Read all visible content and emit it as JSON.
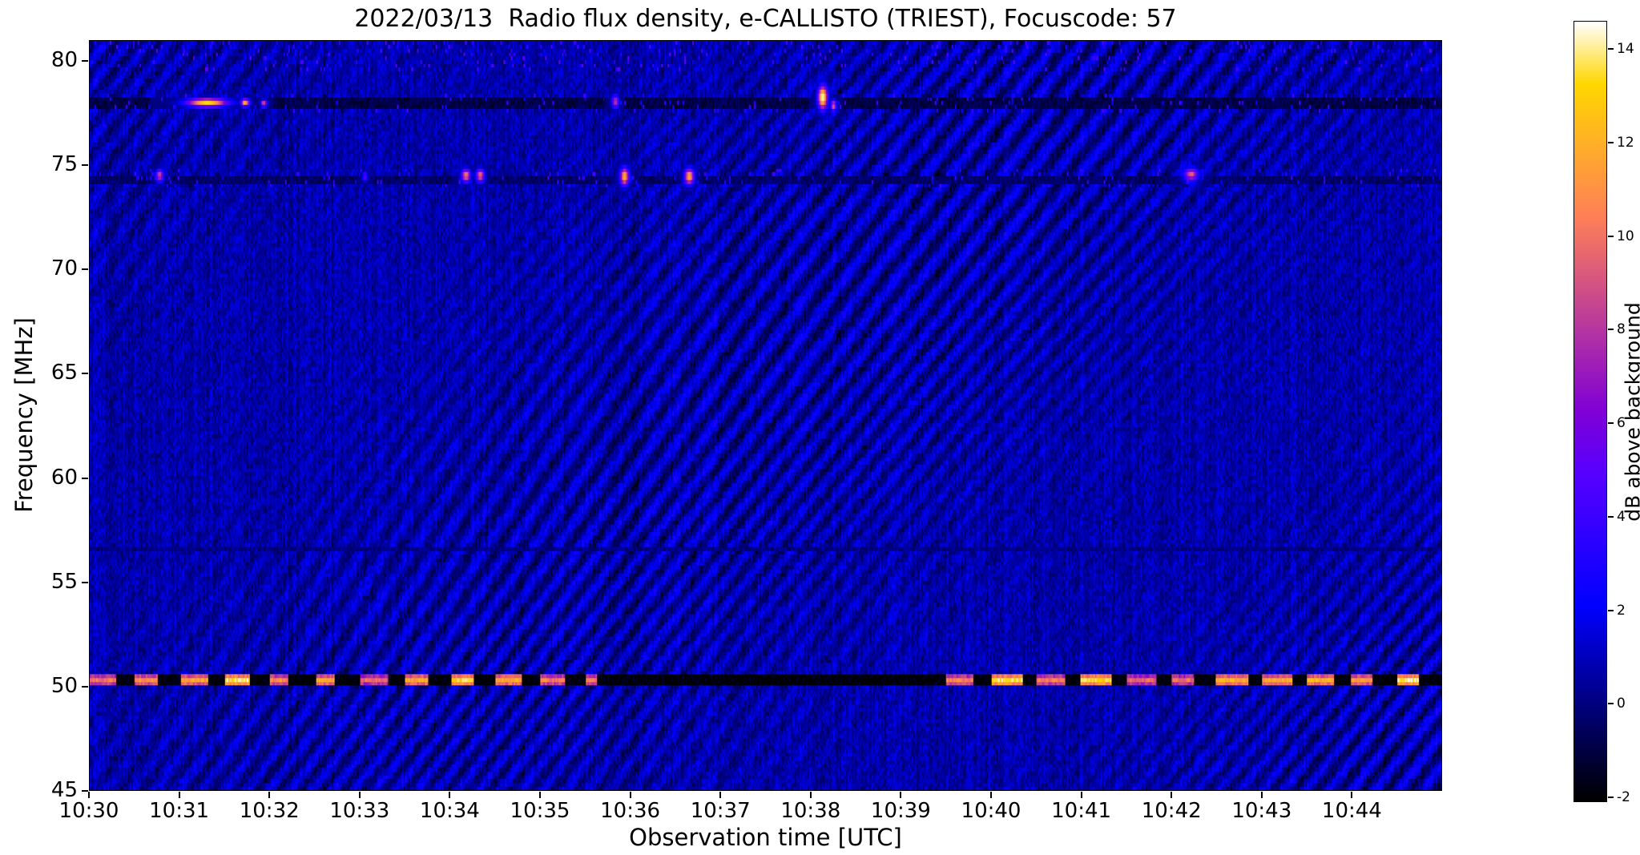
{
  "chart_data": {
    "type": "heatmap",
    "title": "2022/03/13  Radio flux density, e-CALLISTO (TRIEST), Focuscode: 57",
    "xlabel": "Observation time [UTC]",
    "ylabel": "Frequency [MHz]",
    "x_ticks": [
      "10:30",
      "10:31",
      "10:32",
      "10:33",
      "10:34",
      "10:35",
      "10:36",
      "10:37",
      "10:38",
      "10:39",
      "10:40",
      "10:41",
      "10:42",
      "10:43",
      "10:44"
    ],
    "x_range_minutes": [
      0,
      15
    ],
    "start_time_utc": "10:30",
    "y_ticks": [
      80,
      75,
      70,
      65,
      60,
      55,
      50,
      45
    ],
    "y_range_mhz": [
      45,
      81
    ],
    "grid": false,
    "colorbar": {
      "label": "dB above background",
      "ticks": [
        14,
        12,
        10,
        8,
        6,
        4,
        2,
        0,
        -2
      ],
      "vmin": -2.1,
      "vmax": 14.6,
      "colormap": "gnuplot2"
    },
    "background": {
      "base_db": 0.7,
      "ripple_amp_db": 1.15,
      "noise_db": 1.7,
      "col_noise_db": 0.9,
      "channels": 200,
      "time_samples": 880
    },
    "rfi_lanes": [
      {
        "freq_mhz": 78.05,
        "half_width_mhz": 0.26,
        "level_db": -0.9
      },
      {
        "freq_mhz": 74.4,
        "half_width_mhz": 0.2,
        "level_db": -0.4
      },
      {
        "freq_mhz": 56.6,
        "half_width_mhz": 0.12,
        "level_db": 0.0
      },
      {
        "freq_mhz": 50.3,
        "half_width_mhz": 0.32,
        "level_db": -2.0
      }
    ],
    "beacon": {
      "freq_mhz": 50.3,
      "half_width_mhz": 0.3,
      "period_min": 0.5,
      "duty": 0.55,
      "active_windows": [
        [
          0,
          5.63
        ],
        [
          9.35,
          15
        ]
      ],
      "intensity_db": 11,
      "intensity_var_db": 4.5
    },
    "bursts": [
      {
        "t_min": 1.3,
        "freq_mhz": 78.05,
        "dur_min": 0.22,
        "f_width_mhz": 0.2,
        "intensity_db": 13.5
      },
      {
        "t_min": 1.72,
        "freq_mhz": 78.05,
        "dur_min": 0.05,
        "f_width_mhz": 0.18,
        "intensity_db": 12
      },
      {
        "t_min": 1.93,
        "freq_mhz": 78.0,
        "dur_min": 0.035,
        "f_width_mhz": 0.16,
        "intensity_db": 9
      },
      {
        "t_min": 5.83,
        "freq_mhz": 78.1,
        "dur_min": 0.035,
        "f_width_mhz": 0.3,
        "intensity_db": 8.5
      },
      {
        "t_min": 8.13,
        "freq_mhz": 78.3,
        "dur_min": 0.05,
        "f_width_mhz": 0.55,
        "intensity_db": 14.8
      },
      {
        "t_min": 8.25,
        "freq_mhz": 77.9,
        "dur_min": 0.035,
        "f_width_mhz": 0.25,
        "intensity_db": 10
      },
      {
        "t_min": 0.77,
        "freq_mhz": 74.55,
        "dur_min": 0.04,
        "f_width_mhz": 0.28,
        "intensity_db": 9
      },
      {
        "t_min": 3.05,
        "freq_mhz": 74.5,
        "dur_min": 0.03,
        "f_width_mhz": 0.2,
        "intensity_db": 5
      },
      {
        "t_min": 4.17,
        "freq_mhz": 74.55,
        "dur_min": 0.05,
        "f_width_mhz": 0.3,
        "intensity_db": 10.5
      },
      {
        "t_min": 4.33,
        "freq_mhz": 74.55,
        "dur_min": 0.045,
        "f_width_mhz": 0.3,
        "intensity_db": 10
      },
      {
        "t_min": 5.93,
        "freq_mhz": 74.5,
        "dur_min": 0.05,
        "f_width_mhz": 0.42,
        "intensity_db": 12.5
      },
      {
        "t_min": 6.65,
        "freq_mhz": 74.5,
        "dur_min": 0.05,
        "f_width_mhz": 0.38,
        "intensity_db": 12
      },
      {
        "t_min": 12.22,
        "freq_mhz": 74.6,
        "dur_min": 0.08,
        "f_width_mhz": 0.3,
        "intensity_db": 9.5
      }
    ]
  }
}
